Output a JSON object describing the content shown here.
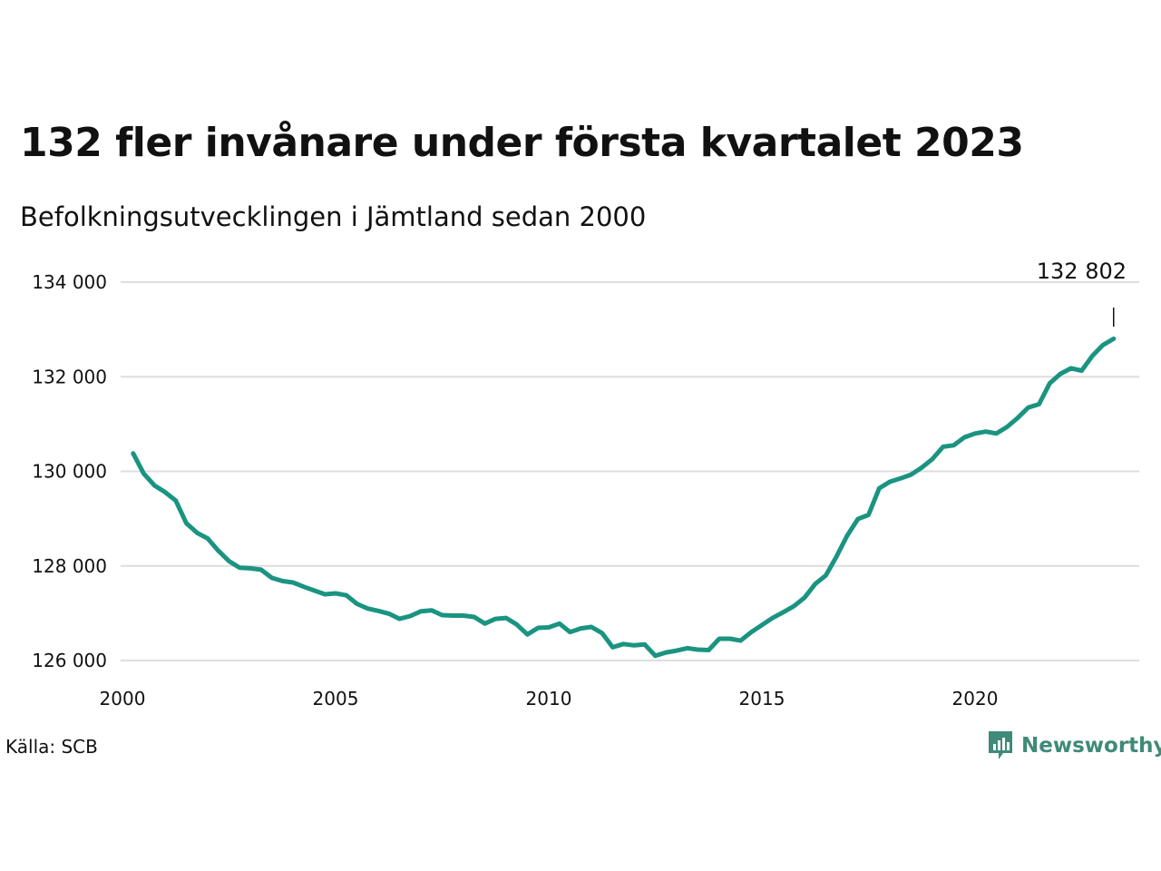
{
  "chart_data": {
    "type": "line",
    "title": "132 fler invånare under första kvartalet 2023",
    "subtitle": "Befolkningsutvecklingen i Jämtland sedan 2000",
    "xlabel": "",
    "ylabel": "",
    "xlim": [
      2000,
      2024
    ],
    "ylim": [
      126000,
      134000
    ],
    "x_ticks": [
      2000,
      2005,
      2010,
      2015,
      2020
    ],
    "x_tick_labels": [
      "2000",
      "2005",
      "2010",
      "2015",
      "2020"
    ],
    "y_ticks": [
      126000,
      128000,
      130000,
      132000,
      134000
    ],
    "y_tick_labels": [
      "126 000",
      "128 000",
      "130 000",
      "132 000",
      "134 000"
    ],
    "grid": true,
    "line_color": "#1a9481",
    "series": [
      {
        "x": [
          2000.25,
          2000.5,
          2000.75,
          2001.0,
          2001.25,
          2001.5,
          2001.75,
          2002.0,
          2002.25,
          2002.5,
          2002.75,
          2003.0,
          2003.25,
          2003.5,
          2003.75,
          2004.0,
          2004.25,
          2004.5,
          2004.75,
          2005.0,
          2005.25,
          2005.5,
          2005.75,
          2006.0,
          2006.25,
          2006.5,
          2006.75,
          2007.0,
          2007.25,
          2007.5,
          2007.75,
          2008.0,
          2008.25,
          2008.5,
          2008.75,
          2009.0,
          2009.25,
          2009.5,
          2009.75,
          2010.0,
          2010.25,
          2010.5,
          2010.75,
          2011.0,
          2011.25,
          2011.5,
          2011.75,
          2012.0,
          2012.25,
          2012.5,
          2012.75,
          2013.0,
          2013.25,
          2013.5,
          2013.75,
          2014.0,
          2014.25,
          2014.5,
          2014.75,
          2015.0,
          2015.25,
          2015.5,
          2015.75,
          2016.0,
          2016.25,
          2016.5,
          2016.75,
          2017.0,
          2017.25,
          2017.5,
          2017.75,
          2018.0,
          2018.25,
          2018.5,
          2018.75,
          2019.0,
          2019.25,
          2019.5,
          2019.75,
          2020.0,
          2020.25,
          2020.5,
          2020.75,
          2021.0,
          2021.25,
          2021.5,
          2021.75,
          2022.0,
          2022.25,
          2022.5,
          2022.75,
          2023.0,
          2023.25
        ],
        "values": [
          130380,
          129950,
          129700,
          129560,
          129380,
          128900,
          128700,
          128580,
          128320,
          128100,
          127960,
          127950,
          127920,
          127750,
          127680,
          127650,
          127560,
          127480,
          127400,
          127420,
          127380,
          127200,
          127100,
          127050,
          126990,
          126880,
          126940,
          127040,
          127060,
          126960,
          126950,
          126950,
          126920,
          126780,
          126880,
          126900,
          126760,
          126550,
          126690,
          126700,
          126780,
          126600,
          126680,
          126710,
          126580,
          126280,
          126350,
          126320,
          126340,
          126100,
          126170,
          126210,
          126260,
          126230,
          126220,
          126460,
          126460,
          126420,
          126600,
          126750,
          126900,
          127020,
          127150,
          127330,
          127620,
          127800,
          128200,
          128640,
          128990,
          129080,
          129640,
          129780,
          129850,
          129930,
          130080,
          130260,
          130520,
          130550,
          130720,
          130800,
          130840,
          130800,
          130940,
          131130,
          131350,
          131420,
          131860,
          132060,
          132180,
          132130,
          132440,
          132670,
          132802
        ]
      }
    ],
    "annotation": {
      "label": "132 802",
      "x": 2023.25,
      "y": 132802
    },
    "source": "Källa: SCB",
    "brand": "Newsworthy"
  }
}
